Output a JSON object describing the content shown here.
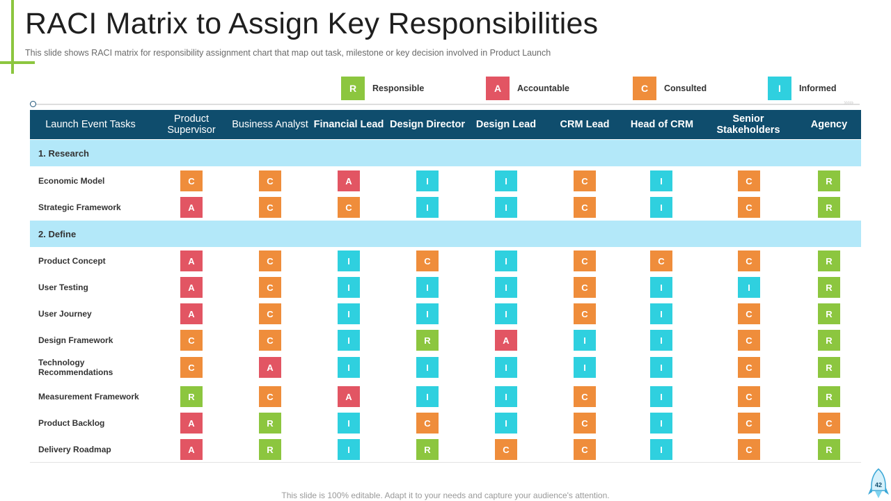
{
  "title": "RACI Matrix to Assign Key Responsibilities",
  "subtitle": "This slide shows RACI  matrix for responsibility assignment chart that map out task, milestone or key decision involved  in Product Launch",
  "legend": [
    {
      "code": "R",
      "label": "Responsible",
      "color": "#8cc63f"
    },
    {
      "code": "A",
      "label": "Accountable",
      "color": "#e25563"
    },
    {
      "code": "C",
      "label": "Consulted",
      "color": "#ef8d3b"
    },
    {
      "code": "I",
      "label": "Informed",
      "color": "#2fd0df"
    }
  ],
  "table": {
    "task_header": "Launch Event Tasks",
    "columns": [
      "Product Supervisor",
      "Business Analyst",
      "Financial Lead",
      "Design Director",
      "Design Lead",
      "CRM Lead",
      "Head of CRM",
      "Senior Stakeholders",
      "Agency"
    ],
    "sections": [
      {
        "title": "1. Research",
        "rows": [
          {
            "task": "Economic Model",
            "values": [
              "C",
              "C",
              "A",
              "I",
              "I",
              "C",
              "I",
              "C",
              "R"
            ]
          },
          {
            "task": "Strategic Framework",
            "values": [
              "A",
              "C",
              "C",
              "I",
              "I",
              "C",
              "I",
              "C",
              "R"
            ]
          }
        ]
      },
      {
        "title": "2. Define",
        "rows": [
          {
            "task": "Product Concept",
            "values": [
              "A",
              "C",
              "I",
              "C",
              "I",
              "C",
              "C",
              "C",
              "R"
            ]
          },
          {
            "task": "User Testing",
            "values": [
              "A",
              "C",
              "I",
              "I",
              "I",
              "C",
              "I",
              "I",
              "R"
            ]
          },
          {
            "task": "User Journey",
            "values": [
              "A",
              "C",
              "I",
              "I",
              "I",
              "C",
              "I",
              "C",
              "R"
            ]
          },
          {
            "task": "Design Framework",
            "values": [
              "C",
              "C",
              "I",
              "R",
              "A",
              "I",
              "I",
              "C",
              "R"
            ]
          },
          {
            "task": "Technology Recommendations",
            "values": [
              "C",
              "A",
              "I",
              "I",
              "I",
              "I",
              "I",
              "C",
              "R"
            ]
          },
          {
            "task": "Measurement Framework",
            "values": [
              "R",
              "C",
              "A",
              "I",
              "I",
              "C",
              "I",
              "C",
              "R"
            ]
          },
          {
            "task": "Product Backlog",
            "values": [
              "A",
              "R",
              "I",
              "C",
              "I",
              "C",
              "I",
              "C",
              "C"
            ]
          },
          {
            "task": "Delivery Roadmap",
            "values": [
              "A",
              "R",
              "I",
              "R",
              "C",
              "C",
              "I",
              "C",
              "R"
            ]
          }
        ]
      }
    ]
  },
  "footer": "This slide is 100% editable. Adapt it to your needs and capture your audience's attention.",
  "page_number": "42"
}
